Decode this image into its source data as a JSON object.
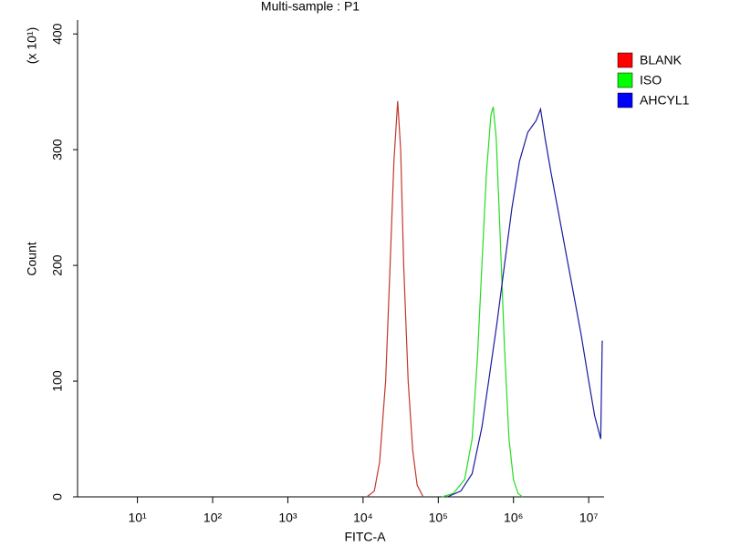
{
  "chart_data": {
    "type": "line",
    "title": "Multi-sample : P1",
    "x_label": "FITC-A",
    "y_label": "Count",
    "y_multiplier": "(x 10¹)",
    "log_x": true,
    "xlim": [
      1.6,
      15140000
    ],
    "xticks": [
      {
        "value": 10,
        "label": "10¹"
      },
      {
        "value": 100,
        "label": "10²"
      },
      {
        "value": 1000,
        "label": "10³"
      },
      {
        "value": 10000,
        "label": "10⁴"
      },
      {
        "value": 100000,
        "label": "10⁵"
      },
      {
        "value": 1000000,
        "label": "10⁶"
      },
      {
        "value": 10000000,
        "label": "10⁷"
      }
    ],
    "ylim": [
      0,
      412
    ],
    "yticks": [
      0,
      100,
      200,
      300,
      400
    ],
    "legend": "right",
    "series": [
      {
        "name": "BLANK",
        "color": "#c0392b",
        "legend_color": "#ff0000",
        "x": [
          11220,
          14125,
          16600,
          19950,
          22900,
          25700,
          28840,
          31620,
          34670,
          39810,
          45710,
          52480,
          63100
        ],
        "values": [
          0,
          5,
          30,
          100,
          200,
          290,
          342,
          300,
          200,
          100,
          40,
          10,
          0
        ]
      },
      {
        "name": "ISO",
        "color": "#22dd22",
        "legend_color": "#00ff00",
        "x": [
          112200,
          158500,
          223900,
          281800,
          331100,
          380200,
          436500,
          501200,
          537000,
          588800,
          660700,
          758600,
          871000,
          1000000,
          1148000,
          1318000
        ],
        "values": [
          0,
          3,
          15,
          50,
          120,
          200,
          280,
          330,
          337,
          310,
          230,
          130,
          50,
          15,
          3,
          0
        ]
      },
      {
        "name": "AHCYL1",
        "color": "#1a1aa0",
        "legend_color": "#0000ff",
        "x": [
          131800,
          199500,
          281800,
          380200,
          467700,
          602600,
          758600,
          955000,
          1202000,
          1549000,
          1995000,
          2291000,
          2630000,
          3162000,
          3981000,
          5012000,
          6310000,
          7943000,
          10000000,
          12020000,
          14450000,
          15140000
        ],
        "values": [
          0,
          5,
          20,
          60,
          100,
          150,
          200,
          250,
          290,
          315,
          325,
          335,
          310,
          280,
          245,
          210,
          175,
          140,
          100,
          70,
          50,
          135
        ]
      }
    ]
  }
}
